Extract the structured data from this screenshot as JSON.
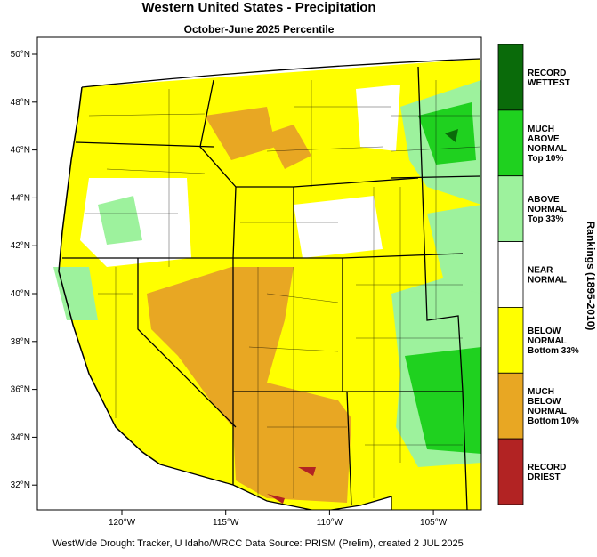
{
  "header": {
    "title": "Western United States - Precipitation",
    "subtitle": "October-June 2025 Percentile"
  },
  "map": {
    "lat_labels": [
      "50°N",
      "48°N",
      "46°N",
      "44°N",
      "42°N",
      "40°N",
      "38°N",
      "36°N",
      "34°N",
      "32°N"
    ],
    "lon_labels": [
      "120°W",
      "115°W",
      "110°W",
      "105°W"
    ]
  },
  "legend": {
    "title": "Rankings (1895-2010)",
    "items": [
      {
        "lines": [
          "RECORD",
          "WETTEST"
        ],
        "color": "#0a6b0a"
      },
      {
        "lines": [
          "MUCH",
          "ABOVE",
          "NORMAL",
          "Top 10%"
        ],
        "color": "#1fd11f"
      },
      {
        "lines": [
          "ABOVE",
          "NORMAL",
          "Top 33%"
        ],
        "color": "#9df29d"
      },
      {
        "lines": [
          "NEAR",
          "NORMAL"
        ],
        "color": "#ffffff"
      },
      {
        "lines": [
          "BELOW",
          "NORMAL",
          "Bottom 33%"
        ],
        "color": "#ffff00"
      },
      {
        "lines": [
          "MUCH",
          "BELOW",
          "NORMAL",
          "Bottom 10%"
        ],
        "color": "#e8a723"
      },
      {
        "lines": [
          "RECORD",
          "DRIEST"
        ],
        "color": "#b22323"
      }
    ]
  },
  "footer": "WestWide Drought Tracker, U Idaho/WRCC Data Source: PRISM (Prelim), created  2 JUL 2025"
}
